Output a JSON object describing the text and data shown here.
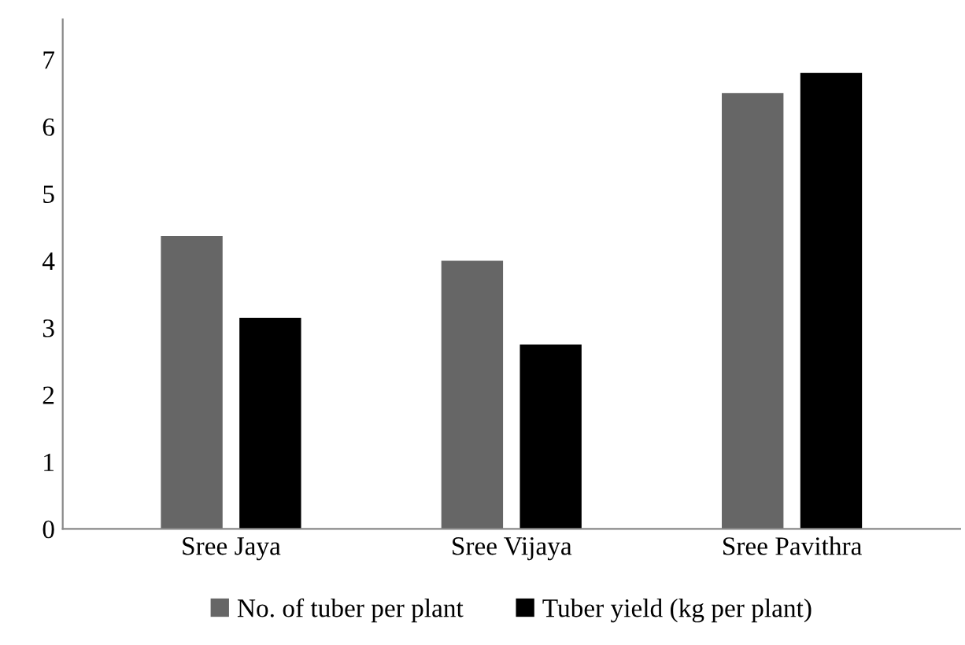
{
  "chart_data": {
    "type": "bar",
    "categories": [
      "Sree Jaya",
      "Sree Vijaya",
      "Sree Pavithra"
    ],
    "series": [
      {
        "name": "No. of tuber per plant",
        "color": "#666666",
        "values": [
          4.37,
          4.0,
          6.5
        ]
      },
      {
        "name": "Tuber yield (kg per plant)",
        "color": "#000000",
        "values": [
          3.15,
          2.75,
          6.8
        ]
      }
    ],
    "ylim": [
      0,
      7.6
    ],
    "yticks": [
      0,
      1,
      2,
      3,
      4,
      5,
      6,
      7
    ],
    "grid": false,
    "legend": "bottom"
  }
}
